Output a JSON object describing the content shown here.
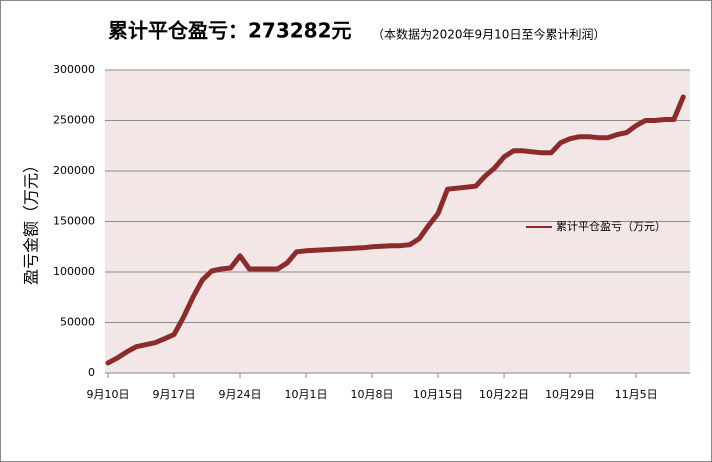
{
  "chart_data": {
    "type": "line",
    "title": "累计平仓盈亏：273282元",
    "subtitle": "（本数据为2020年9月10日至今累计利润）",
    "y_label": "盈亏金额（万元）",
    "categories": [
      "9月10日",
      null,
      null,
      null,
      null,
      null,
      null,
      "9月17日",
      null,
      null,
      null,
      null,
      null,
      null,
      "9月24日",
      null,
      null,
      null,
      null,
      null,
      null,
      "10月1日",
      null,
      null,
      null,
      null,
      null,
      null,
      "10月8日",
      null,
      null,
      null,
      null,
      null,
      null,
      "10月15日",
      null,
      null,
      null,
      null,
      null,
      null,
      "10月22日",
      null,
      null,
      null,
      null,
      null,
      null,
      "10月29日",
      null,
      null,
      null,
      null,
      null,
      null,
      "11月5日",
      null,
      null,
      null,
      null,
      null
    ],
    "series": [
      {
        "name": "累计平仓盈亏（万元）",
        "color": "#8c2b2b",
        "values": [
          10000,
          15000,
          21000,
          26000,
          28000,
          30000,
          34000,
          38000,
          55000,
          75000,
          92000,
          101000,
          103000,
          104000,
          116000,
          103000,
          103000,
          103000,
          103000,
          109000,
          120000,
          121000,
          121500,
          122000,
          122500,
          123000,
          123500,
          124000,
          125000,
          125500,
          126000,
          126000,
          127000,
          133000,
          146000,
          158000,
          182000,
          183000,
          184000,
          185000,
          195000,
          203000,
          214000,
          220000,
          220000,
          219000,
          218000,
          218000,
          228000,
          232000,
          234000,
          234000,
          233000,
          233000,
          236000,
          238000,
          245000,
          250000,
          250000,
          251000,
          251000,
          273282
        ]
      }
    ],
    "ylim": [
      0,
      300000
    ],
    "yticks": [
      0,
      50000,
      100000,
      150000,
      200000,
      250000,
      300000
    ],
    "grid": true,
    "legend": "right"
  }
}
